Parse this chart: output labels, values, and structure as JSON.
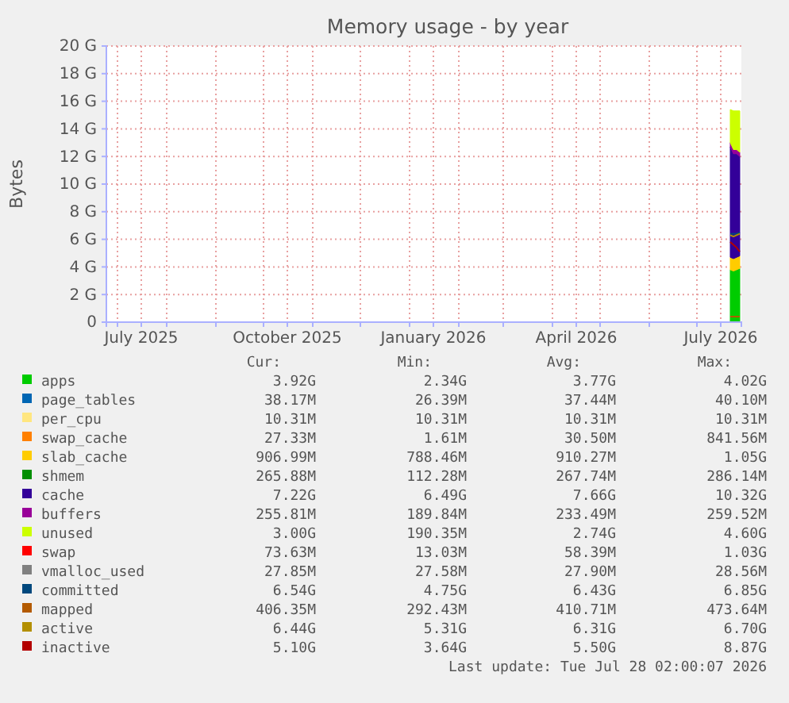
{
  "chart_data": {
    "type": "area",
    "title": "Memory usage - by year",
    "ylabel": "Bytes",
    "stacked": true,
    "grid": true,
    "legend": "bottom",
    "x": [
      "2026-07-22",
      "2026-07-24",
      "2026-07-26",
      "2026-07-28"
    ],
    "xlim": [
      "2025-06-24",
      "2026-07-29"
    ],
    "xticks": [
      {
        "value": "2025-07-01",
        "label": null
      },
      {
        "value": "2025-07-16",
        "label": "July 2025"
      },
      {
        "value": "2025-08-01",
        "label": null
      },
      {
        "value": "2025-09-01",
        "label": null
      },
      {
        "value": "2025-10-01",
        "label": null
      },
      {
        "value": "2025-10-16",
        "label": "October 2025"
      },
      {
        "value": "2025-11-01",
        "label": null
      },
      {
        "value": "2025-12-01",
        "label": null
      },
      {
        "value": "2026-01-01",
        "label": null
      },
      {
        "value": "2026-01-16",
        "label": "January 2026"
      },
      {
        "value": "2026-02-01",
        "label": null
      },
      {
        "value": "2026-03-01",
        "label": null
      },
      {
        "value": "2026-04-01",
        "label": null
      },
      {
        "value": "2026-04-16",
        "label": "April 2026"
      },
      {
        "value": "2026-05-01",
        "label": null
      },
      {
        "value": "2026-06-01",
        "label": null
      },
      {
        "value": "2026-07-01",
        "label": null
      },
      {
        "value": "2026-07-16",
        "label": "July 2026"
      }
    ],
    "ylim": [
      0,
      20
    ],
    "yticks": [
      {
        "value": 0,
        "label": "0"
      },
      {
        "value": 2,
        "label": "2 G"
      },
      {
        "value": 4,
        "label": "4 G"
      },
      {
        "value": 6,
        "label": "6 G"
      },
      {
        "value": 8,
        "label": "8 G"
      },
      {
        "value": 10,
        "label": "10 G"
      },
      {
        "value": 12,
        "label": "12 G"
      },
      {
        "value": 14,
        "label": "14 G"
      },
      {
        "value": 16,
        "label": "16 G"
      },
      {
        "value": 18,
        "label": "18 G"
      },
      {
        "value": 20,
        "label": "20 G"
      }
    ],
    "series": [
      {
        "name": "apps",
        "color": "#00cc00",
        "values": [
          3.8,
          3.7,
          3.8,
          3.9
        ]
      },
      {
        "name": "page_tables",
        "color": "#0066b3",
        "values": [
          null,
          null,
          null,
          null
        ]
      },
      {
        "name": "per_cpu",
        "color": "#ffe680",
        "values": [
          null,
          null,
          null,
          null
        ]
      },
      {
        "name": "swap_cache",
        "color": "#ff8000",
        "values": [
          null,
          null,
          null,
          null
        ]
      },
      {
        "name": "slab_cache",
        "color": "#ffcc00",
        "values": [
          0.9,
          0.9,
          0.9,
          0.9
        ]
      },
      {
        "name": "shmem",
        "color": "#008f00",
        "values": [
          null,
          null,
          null,
          null
        ]
      },
      {
        "name": "cache",
        "color": "#330099",
        "values": [
          8,
          7.6,
          7.5,
          7.2
        ]
      },
      {
        "name": "buffers",
        "color": "#990099",
        "values": [
          0.3,
          0.3,
          0.3,
          0.3
        ]
      },
      {
        "name": "unused",
        "color": "#ccff00",
        "values": [
          2.4,
          2.8,
          2.8,
          3.0
        ]
      },
      {
        "name": "swap",
        "color": "#ff0000",
        "values": [
          null,
          null,
          null,
          null
        ]
      },
      {
        "name": "vmalloc_used",
        "color": "#808080",
        "type": "line",
        "values": [
          null,
          null,
          null,
          null
        ]
      },
      {
        "name": "committed",
        "color": "#00487d",
        "type": "line",
        "values": [
          6.4,
          6.4,
          6.4,
          6.5
        ]
      },
      {
        "name": "mapped",
        "color": "#b35a00",
        "type": "line",
        "values": [
          0.4,
          0.4,
          0.4,
          0.4
        ]
      },
      {
        "name": "active",
        "color": "#b38f00",
        "type": "line",
        "values": [
          6.3,
          6.2,
          6.3,
          6.4
        ]
      },
      {
        "name": "inactive",
        "color": "#b30000",
        "type": "line",
        "values": [
          5.8,
          5.6,
          5.4,
          5.1
        ]
      }
    ],
    "annotations": [
      "Cur:",
      "Min:",
      "Avg:",
      "Max:",
      "3.92G",
      "2.34G",
      "3.77G",
      "4.02G",
      "38.17M",
      "26.39M",
      "37.44M",
      "40.10M",
      "10.31M",
      "10.31M",
      "10.31M",
      "10.31M",
      "27.33M",
      "1.61M",
      "30.50M",
      "841.56M",
      "906.99M",
      "788.46M",
      "910.27M",
      "1.05G",
      "265.88M",
      "112.28M",
      "267.74M",
      "286.14M",
      "7.22G",
      "6.49G",
      "7.66G",
      "10.32G",
      "255.81M",
      "189.84M",
      "233.49M",
      "259.52M",
      "3.00G",
      "190.35M",
      "2.74G",
      "4.60G",
      "73.63M",
      "13.03M",
      "58.39M",
      "1.03G",
      "27.85M",
      "27.58M",
      "27.90M",
      "28.56M",
      "6.54G",
      "4.75G",
      "6.43G",
      "6.85G",
      "406.35M",
      "292.43M",
      "410.71M",
      "473.64M",
      "6.44G",
      "5.31G",
      "6.31G",
      "6.70G",
      "5.10G",
      "3.64G",
      "5.50G",
      "8.87G",
      "Last update: Tue Jul 28 02:00:07 2026"
    ]
  }
}
